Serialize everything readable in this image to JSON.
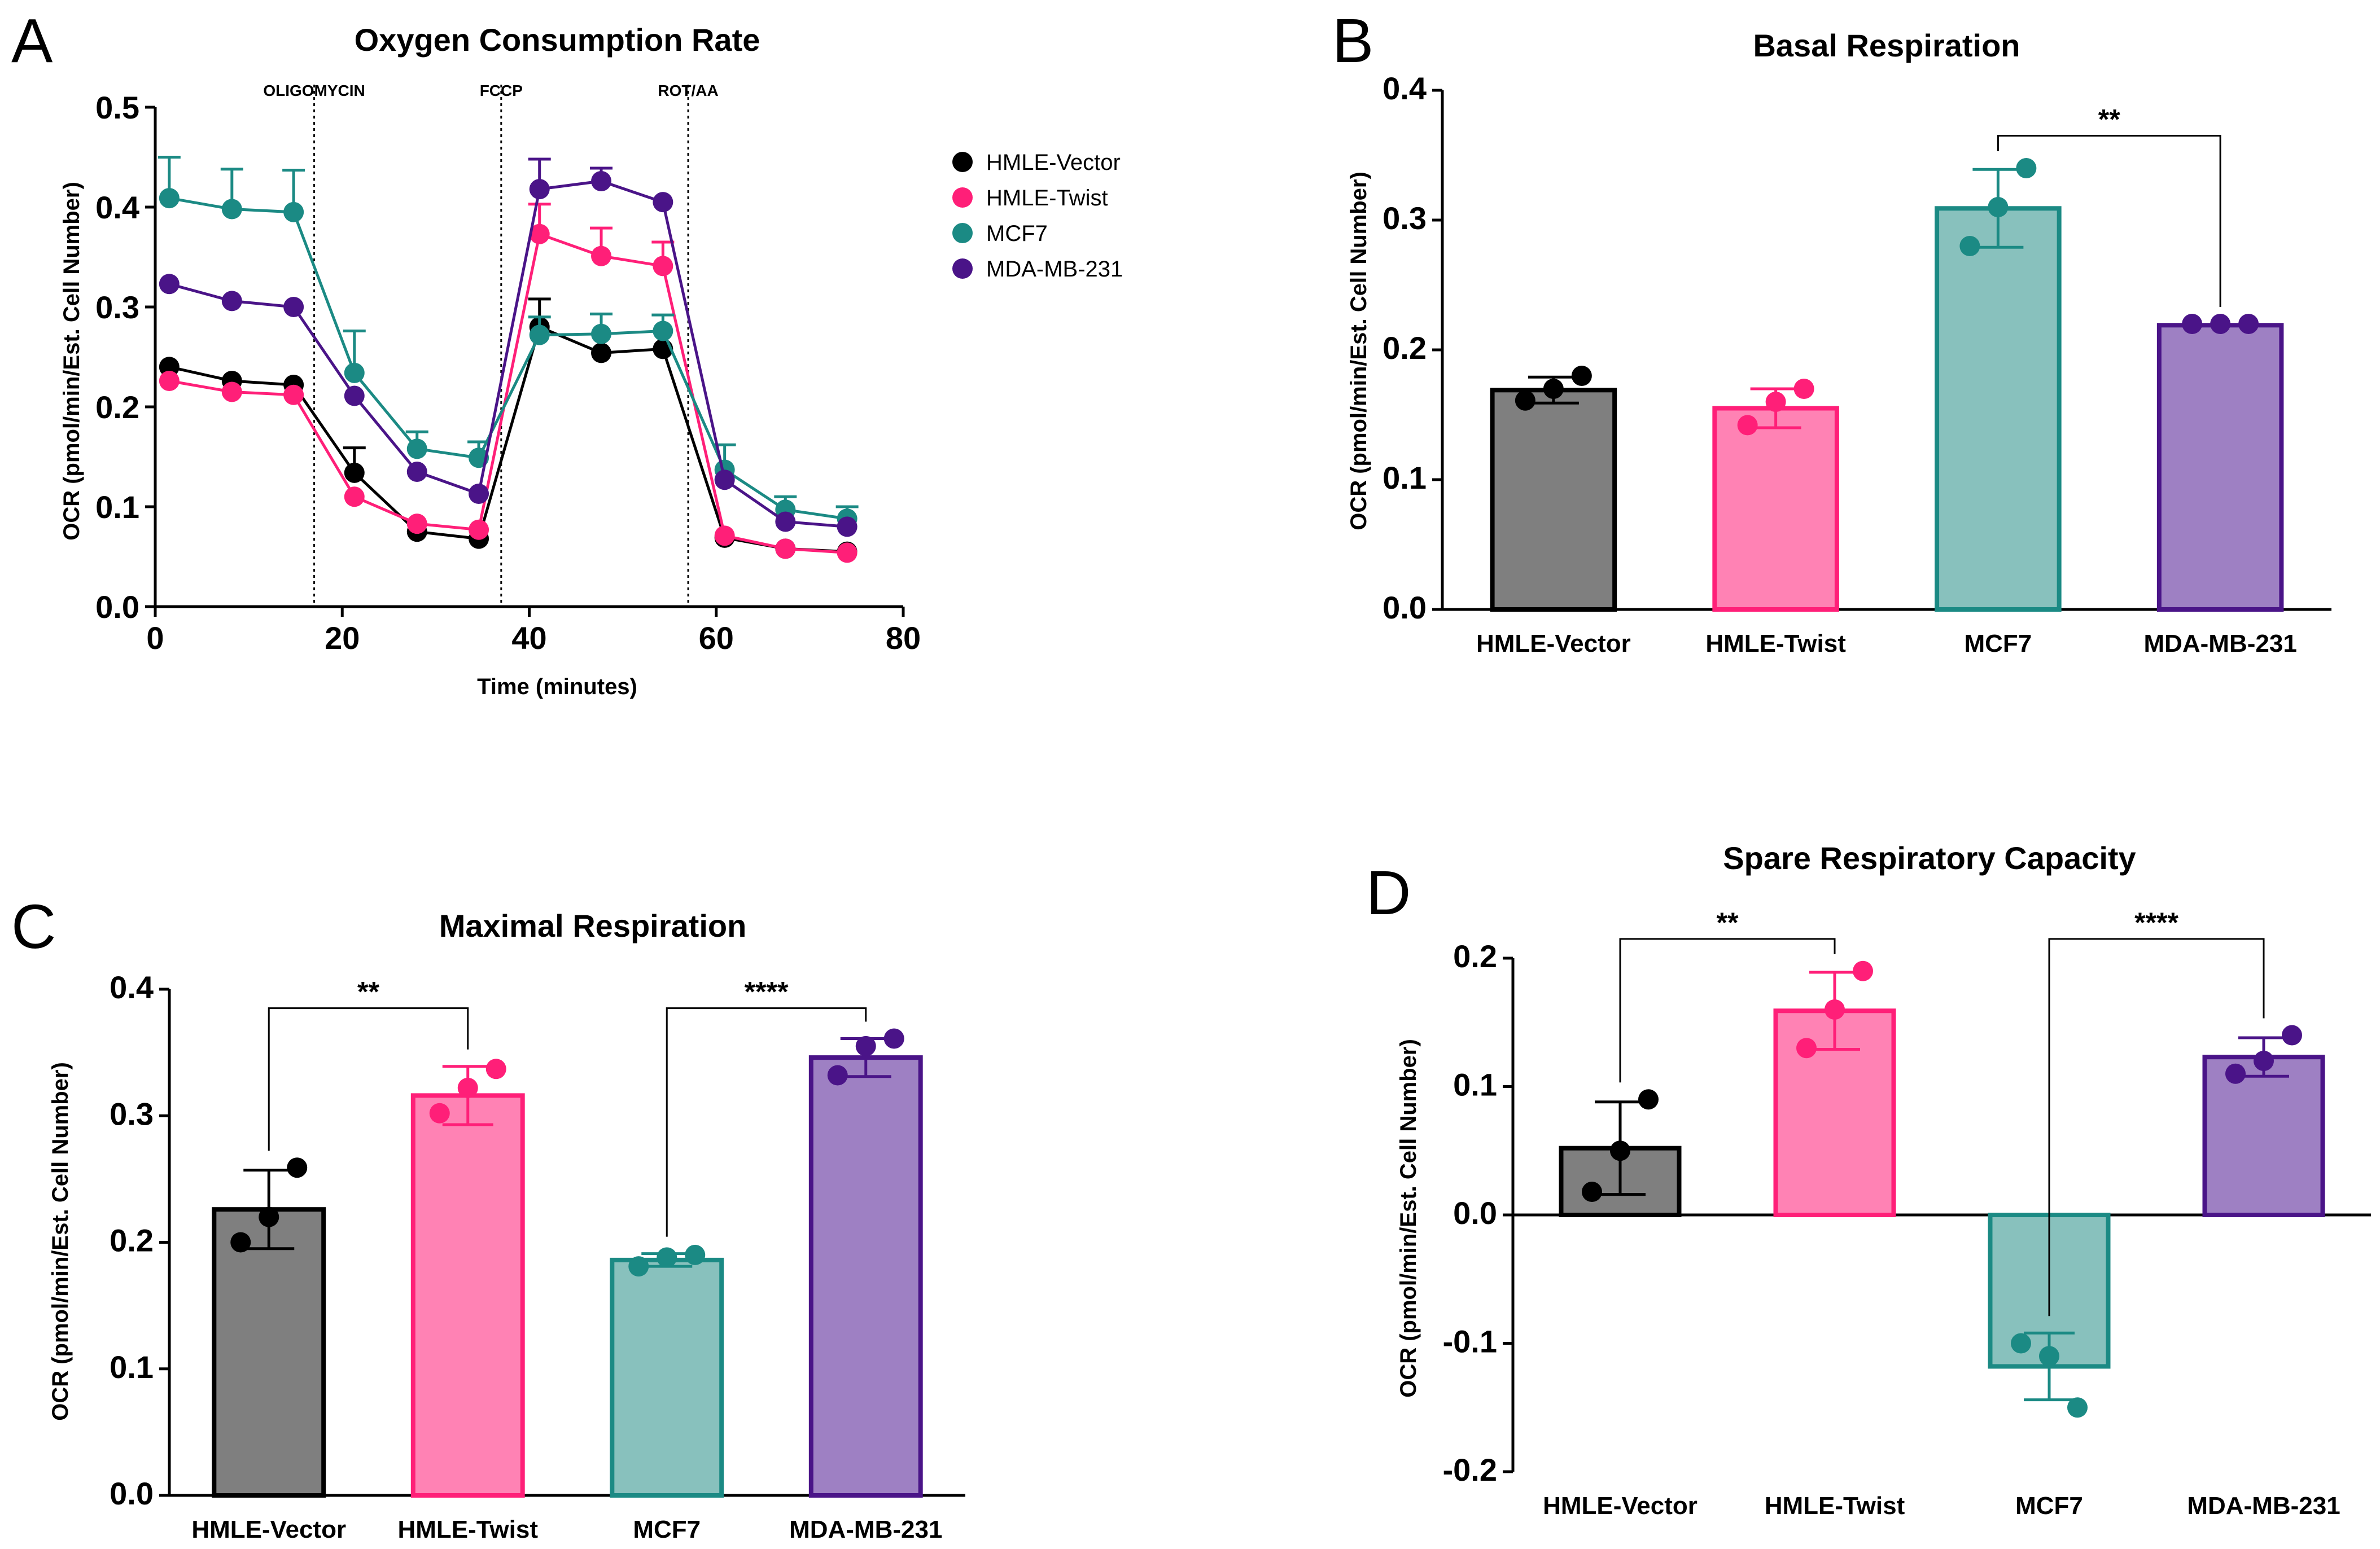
{
  "colors": {
    "HMLE-Vector": {
      "line": "#000000",
      "fill": "#7f7f7f",
      "edge": "#000000"
    },
    "HMLE-Twist": {
      "line": "#ff1f78",
      "fill": "#ff82b4",
      "edge": "#ff1f78"
    },
    "MCF7": {
      "line": "#1b8a84",
      "fill": "#88c1bd",
      "edge": "#1b8a84"
    },
    "MDA-MB-231": {
      "line": "#4a1488",
      "fill": "#9e80c3",
      "edge": "#4a1488"
    }
  },
  "chart_data": [
    {
      "panel": "A",
      "type": "line",
      "title": "Oxygen Consumption Rate",
      "xlabel": "Time (minutes)",
      "ylabel": "OCR (pmol/min/Est. Cell Number)",
      "xlim": [
        0,
        80
      ],
      "ylim": [
        0,
        0.5
      ],
      "xticks": [
        "0",
        "20",
        "40",
        "60",
        "80"
      ],
      "xtick_values": [
        0,
        20,
        40,
        60,
        80
      ],
      "yticks": [
        "0.0",
        "0.1",
        "0.2",
        "0.3",
        "0.4",
        "0.5"
      ],
      "ytick_values": [
        0,
        0.1,
        0.2,
        0.3,
        0.4,
        0.5
      ],
      "events": [
        {
          "label": "OLIGOMYCIN",
          "x": 17
        },
        {
          "label": "FCCP",
          "x": 37
        },
        {
          "label": "ROT/AA",
          "x": 57
        }
      ],
      "legend": [
        "HMLE-Vector",
        "HMLE-Twist",
        "MCF7",
        "MDA-MB-231"
      ],
      "x": [
        1.5,
        8.2,
        14.8,
        21.3,
        28,
        34.6,
        41.1,
        47.7,
        54.3,
        60.9,
        67.4,
        74
      ],
      "series": [
        {
          "name": "HMLE-Vector",
          "values": [
            0.24,
            0.226,
            0.222,
            0.134,
            0.075,
            0.068,
            0.28,
            0.254,
            0.258,
            0.069,
            0.058,
            0.055
          ],
          "err": [
            0,
            0,
            0,
            0.025,
            0,
            0,
            0.028,
            0,
            0,
            0,
            0,
            0
          ]
        },
        {
          "name": "HMLE-Twist",
          "values": [
            0.226,
            0.215,
            0.212,
            0.11,
            0.083,
            0.077,
            0.373,
            0.351,
            0.341,
            0.071,
            0.058,
            0.054
          ],
          "err": [
            0,
            0,
            0,
            0,
            0,
            0,
            0.03,
            0.028,
            0.024,
            0,
            0,
            0
          ]
        },
        {
          "name": "MCF7",
          "values": [
            0.409,
            0.398,
            0.395,
            0.234,
            0.158,
            0.149,
            0.272,
            0.273,
            0.276,
            0.137,
            0.097,
            0.088
          ],
          "err": [
            0.041,
            0.04,
            0.042,
            0.042,
            0.017,
            0.016,
            0.018,
            0.02,
            0.016,
            0.025,
            0.013,
            0.012
          ]
        },
        {
          "name": "MDA-MB-231",
          "values": [
            0.323,
            0.306,
            0.3,
            0.211,
            0.135,
            0.113,
            0.418,
            0.426,
            0.405,
            0.127,
            0.085,
            0.08
          ],
          "err": [
            0,
            0,
            0,
            0,
            0,
            0,
            0.03,
            0.013,
            0,
            0,
            0,
            0
          ]
        }
      ]
    },
    {
      "panel": "B",
      "type": "bar",
      "title": "Basal Respiration",
      "ylabel": "OCR (pmol/min/Est. Cell Number)",
      "ylim": [
        0,
        0.4
      ],
      "yticks": [
        "0.0",
        "0.1",
        "0.2",
        "0.3",
        "0.4"
      ],
      "ytick_values": [
        0,
        0.1,
        0.2,
        0.3,
        0.4
      ],
      "categories": [
        "HMLE-Vector",
        "HMLE-Twist",
        "MCF7",
        "MDA-MB-231"
      ],
      "values": [
        0.169,
        0.155,
        0.309,
        0.219
      ],
      "err": [
        0.01,
        0.015,
        0.03,
        0
      ],
      "points": [
        [
          0.161,
          0.17,
          0.18
        ],
        [
          0.142,
          0.16,
          0.17
        ],
        [
          0.28,
          0.31,
          0.34
        ],
        [
          0.22,
          0.22,
          0.22
        ]
      ],
      "significance": [
        {
          "from": 2,
          "to": 3,
          "label": "**",
          "y": 0.365
        }
      ]
    },
    {
      "panel": "C",
      "type": "bar",
      "title": "Maximal Respiration",
      "ylabel": "OCR (pmol/min/Est. Cell Number)",
      "ylim": [
        0,
        0.4
      ],
      "yticks": [
        "0.0",
        "0.1",
        "0.2",
        "0.3",
        "0.4"
      ],
      "ytick_values": [
        0,
        0.1,
        0.2,
        0.3,
        0.4
      ],
      "categories": [
        "HMLE-Vector",
        "HMLE-Twist",
        "MCF7",
        "MDA-MB-231"
      ],
      "values": [
        0.226,
        0.316,
        0.186,
        0.346
      ],
      "err": [
        0.031,
        0.023,
        0.005,
        0.015
      ],
      "points": [
        [
          0.2,
          0.22,
          0.259
        ],
        [
          0.302,
          0.322,
          0.337
        ],
        [
          0.181,
          0.188,
          0.19
        ],
        [
          0.332,
          0.355,
          0.361
        ]
      ],
      "significance": [
        {
          "from": 0,
          "to": 1,
          "label": "**",
          "y": 0.385
        },
        {
          "from": 2,
          "to": 3,
          "label": "****",
          "y": 0.385
        }
      ]
    },
    {
      "panel": "D",
      "type": "bar",
      "title": "Spare Respiratory Capacity",
      "ylabel": "OCR (pmol/min/Est. Cell Number)",
      "ylim": [
        -0.2,
        0.2
      ],
      "yticks": [
        "-0.2",
        "-0.1",
        "0.0",
        "0.1",
        "0.2"
      ],
      "ytick_values": [
        -0.2,
        -0.1,
        0,
        0.1,
        0.2
      ],
      "categories": [
        "HMLE-Vector",
        "HMLE-Twist",
        "MCF7",
        "MDA-MB-231"
      ],
      "values": [
        0.052,
        0.159,
        -0.118,
        0.123
      ],
      "err": [
        0.036,
        0.03,
        0.026,
        0.015
      ],
      "points": [
        [
          0.018,
          0.05,
          0.09
        ],
        [
          0.13,
          0.16,
          0.19
        ],
        [
          -0.1,
          -0.11,
          -0.15
        ],
        [
          0.11,
          0.12,
          0.14
        ]
      ],
      "significance": [
        {
          "from": 0,
          "to": 1,
          "label": "**",
          "y": 0.215
        },
        {
          "from": 2,
          "to": 3,
          "label": "****",
          "y": 0.215
        }
      ]
    }
  ]
}
